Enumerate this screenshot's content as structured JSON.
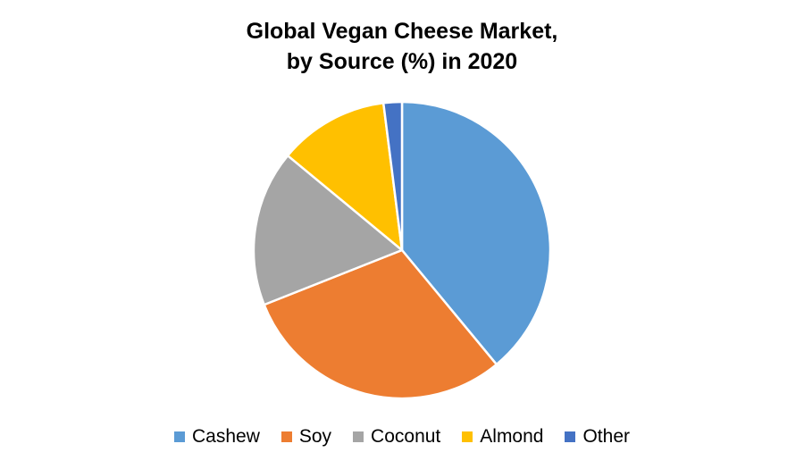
{
  "chart_data": {
    "type": "pie",
    "title_lines": [
      "Global Vegan Cheese Market,",
      "by Source (%) in 2020"
    ],
    "categories": [
      "Cashew",
      "Soy",
      "Coconut",
      "Almond",
      "Other"
    ],
    "values": [
      39,
      30,
      17,
      12,
      2
    ],
    "colors": [
      "#5B9BD5",
      "#ED7D31",
      "#A5A5A5",
      "#FFC000",
      "#4472C4"
    ],
    "legend_position": "bottom",
    "start_angle": "12 o'clock",
    "direction": "clockwise"
  }
}
